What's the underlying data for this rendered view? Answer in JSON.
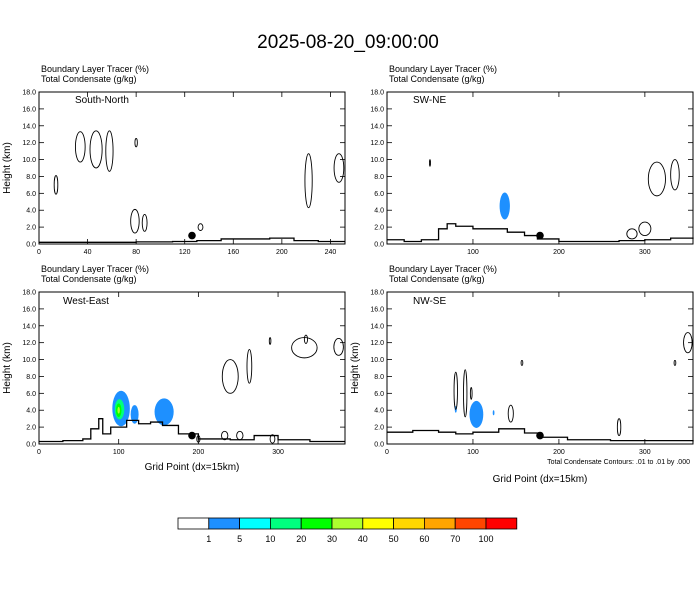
{
  "title": "2025-08-20_09:00:00",
  "chart_data": [
    {
      "type": "contour-cross-section",
      "panel": "South-North",
      "header": [
        "Boundary Layer Tracer   (%)",
        "Total Condensate   (g/kg)"
      ],
      "ylabel": "Height (km)",
      "ylim": [
        0,
        18
      ],
      "yticks": [
        "0.0",
        "2.0",
        "4.0",
        "6.0",
        "8.0",
        "10.0",
        "12.0",
        "14.0",
        "16.0",
        "18.0"
      ],
      "xlim": [
        0,
        252
      ],
      "xticks": [
        0,
        40,
        80,
        120,
        160,
        200,
        240
      ],
      "dot": {
        "x": 126,
        "y": 1.0
      },
      "terrain": [
        [
          0,
          0.2
        ],
        [
          40,
          0.2
        ],
        [
          80,
          0.25
        ],
        [
          110,
          0.3
        ],
        [
          130,
          0.4
        ],
        [
          150,
          0.6
        ],
        [
          170,
          0.6
        ],
        [
          190,
          0.7
        ],
        [
          210,
          0.4
        ],
        [
          230,
          0.3
        ],
        [
          252,
          0.3
        ]
      ],
      "cloud_outlines": [
        {
          "cx": 34,
          "cy": 11.5,
          "rx": 4,
          "ry": 1.8
        },
        {
          "cx": 47,
          "cy": 11.2,
          "rx": 5,
          "ry": 2.2
        },
        {
          "cx": 58,
          "cy": 11.0,
          "rx": 3,
          "ry": 2.4
        },
        {
          "cx": 14,
          "cy": 7.0,
          "rx": 1.5,
          "ry": 1.1
        },
        {
          "cx": 79,
          "cy": 2.7,
          "rx": 3.5,
          "ry": 1.4
        },
        {
          "cx": 87,
          "cy": 2.5,
          "rx": 2,
          "ry": 1.0
        },
        {
          "cx": 80,
          "cy": 12.0,
          "rx": 1,
          "ry": 0.5
        },
        {
          "cx": 222,
          "cy": 7.5,
          "rx": 3,
          "ry": 3.2
        },
        {
          "cx": 247,
          "cy": 9.0,
          "rx": 4,
          "ry": 1.7
        },
        {
          "cx": 133,
          "cy": 2.0,
          "rx": 2,
          "ry": 0.4
        }
      ],
      "filled": []
    },
    {
      "type": "contour-cross-section",
      "panel": "SW-NE",
      "header": [
        "Boundary Layer Tracer   (%)",
        "Total Condensate   (g/kg)"
      ],
      "ylabel": "",
      "ylim": [
        0,
        18
      ],
      "yticks": [
        "0.0",
        "2.0",
        "4.0",
        "6.0",
        "8.0",
        "10.0",
        "12.0",
        "14.0",
        "16.0",
        "18.0"
      ],
      "xlim": [
        0,
        356
      ],
      "xticks": [
        100,
        200,
        300
      ],
      "dot": {
        "x": 178,
        "y": 1.0
      },
      "terrain": [
        [
          0,
          0.5
        ],
        [
          20,
          0.3
        ],
        [
          40,
          0.5
        ],
        [
          60,
          1.8
        ],
        [
          70,
          2.4
        ],
        [
          80,
          2.1
        ],
        [
          100,
          1.8
        ],
        [
          120,
          1.8
        ],
        [
          140,
          1.4
        ],
        [
          160,
          1.0
        ],
        [
          175,
          0.6
        ],
        [
          200,
          0.3
        ],
        [
          240,
          0.3
        ],
        [
          270,
          0.4
        ],
        [
          300,
          0.5
        ],
        [
          330,
          0.7
        ],
        [
          356,
          0.6
        ]
      ],
      "cloud_outlines": [
        {
          "cx": 314,
          "cy": 7.7,
          "rx": 10,
          "ry": 2.0
        },
        {
          "cx": 335,
          "cy": 8.2,
          "rx": 5,
          "ry": 1.8
        },
        {
          "cx": 300,
          "cy": 1.8,
          "rx": 7,
          "ry": 0.8
        },
        {
          "cx": 285,
          "cy": 1.2,
          "rx": 6,
          "ry": 0.6
        },
        {
          "cx": 50,
          "cy": 9.6,
          "rx": 0.6,
          "ry": 0.4
        }
      ],
      "filled": [
        {
          "level": 1,
          "cx": 137,
          "cy": 4.5,
          "rx": 6,
          "ry": 1.6
        }
      ]
    },
    {
      "type": "contour-cross-section",
      "panel": "West-East",
      "header": [
        "Boundary Layer Tracer   (%)",
        "Total Condensate   (g/kg)"
      ],
      "ylabel": "Height (km)",
      "xlabel": "Grid Point (dx=15km)",
      "ylim": [
        0,
        18
      ],
      "yticks": [
        "0.0",
        "2.0",
        "4.0",
        "6.0",
        "8.0",
        "10.0",
        "12.0",
        "14.0",
        "16.0",
        "18.0"
      ],
      "xlim": [
        0,
        384
      ],
      "xticks": [
        0,
        100,
        200,
        300
      ],
      "dot": {
        "x": 192,
        "y": 1.0
      },
      "terrain": [
        [
          0,
          0.3
        ],
        [
          30,
          0.4
        ],
        [
          55,
          0.6
        ],
        [
          65,
          1.8
        ],
        [
          75,
          3.0
        ],
        [
          80,
          1.2
        ],
        [
          90,
          2.0
        ],
        [
          110,
          2.8
        ],
        [
          125,
          2.4
        ],
        [
          140,
          2.6
        ],
        [
          155,
          2.2
        ],
        [
          175,
          1.2
        ],
        [
          200,
          0.6
        ],
        [
          240,
          0.5
        ],
        [
          270,
          1.0
        ],
        [
          300,
          0.5
        ],
        [
          340,
          0.3
        ],
        [
          384,
          0.3
        ]
      ],
      "cloud_outlines": [
        {
          "cx": 240,
          "cy": 8.0,
          "rx": 10,
          "ry": 2.0
        },
        {
          "cx": 264,
          "cy": 9.2,
          "rx": 3,
          "ry": 2.0
        },
        {
          "cx": 333,
          "cy": 11.4,
          "rx": 16,
          "ry": 1.2
        },
        {
          "cx": 376,
          "cy": 11.5,
          "rx": 6,
          "ry": 1.0
        },
        {
          "cx": 290,
          "cy": 12.2,
          "rx": 1,
          "ry": 0.4
        },
        {
          "cx": 335,
          "cy": 12.4,
          "rx": 2,
          "ry": 0.5
        },
        {
          "cx": 233,
          "cy": 1.0,
          "rx": 4,
          "ry": 0.5
        },
        {
          "cx": 252,
          "cy": 1.0,
          "rx": 4,
          "ry": 0.5
        },
        {
          "cx": 293,
          "cy": 0.6,
          "rx": 3,
          "ry": 0.5
        },
        {
          "cx": 200,
          "cy": 0.6,
          "rx": 2,
          "ry": 0.4
        }
      ],
      "filled": [
        {
          "level": 1,
          "cx": 103,
          "cy": 4.2,
          "rx": 11,
          "ry": 2.1
        },
        {
          "level": 1,
          "cx": 120,
          "cy": 3.5,
          "rx": 5,
          "ry": 1.1
        },
        {
          "level": 1,
          "cx": 157,
          "cy": 3.8,
          "rx": 12,
          "ry": 1.6
        },
        {
          "level": 10,
          "cx": 101,
          "cy": 4.1,
          "rx": 6,
          "ry": 1.2
        },
        {
          "level": 20,
          "cx": 100,
          "cy": 4.0,
          "rx": 3.5,
          "ry": 0.8
        },
        {
          "level": 30,
          "cx": 100,
          "cy": 4.0,
          "rx": 1.5,
          "ry": 0.4
        }
      ]
    },
    {
      "type": "contour-cross-section",
      "panel": "NW-SE",
      "header": [
        "Boundary Layer Tracer   (%)",
        "Total Condensate   (g/kg)"
      ],
      "ylabel": "Height (km)",
      "xlabel": "Grid Point (dx=15km)",
      "ylim": [
        0,
        18
      ],
      "yticks": [
        "0.0",
        "2.0",
        "4.0",
        "6.0",
        "8.0",
        "10.0",
        "12.0",
        "14.0",
        "16.0",
        "18.0"
      ],
      "xlim": [
        0,
        356
      ],
      "xticks": [
        0,
        100,
        200,
        300
      ],
      "dot": {
        "x": 178,
        "y": 1.0
      },
      "terrain": [
        [
          0,
          1.4
        ],
        [
          30,
          1.6
        ],
        [
          60,
          1.4
        ],
        [
          80,
          1.2
        ],
        [
          100,
          1.4
        ],
        [
          130,
          1.8
        ],
        [
          160,
          1.3
        ],
        [
          180,
          0.8
        ],
        [
          210,
          0.5
        ],
        [
          260,
          0.4
        ],
        [
          300,
          0.4
        ],
        [
          356,
          0.3
        ]
      ],
      "cloud_outlines": [
        {
          "cx": 80,
          "cy": 6.3,
          "rx": 2,
          "ry": 2.2
        },
        {
          "cx": 91,
          "cy": 6.0,
          "rx": 2,
          "ry": 2.8
        },
        {
          "cx": 98,
          "cy": 6.0,
          "rx": 1,
          "ry": 0.7
        },
        {
          "cx": 144,
          "cy": 3.6,
          "rx": 3,
          "ry": 1.0
        },
        {
          "cx": 350,
          "cy": 12.0,
          "rx": 5,
          "ry": 1.2
        },
        {
          "cx": 270,
          "cy": 2.0,
          "rx": 2,
          "ry": 1.0
        },
        {
          "cx": 157,
          "cy": 9.6,
          "rx": 1,
          "ry": 0.3
        },
        {
          "cx": 335,
          "cy": 9.6,
          "rx": 1,
          "ry": 0.3
        }
      ],
      "filled": [
        {
          "level": 1,
          "cx": 104,
          "cy": 3.5,
          "rx": 8,
          "ry": 1.6
        },
        {
          "level": 1,
          "cx": 80,
          "cy": 4.1,
          "rx": 1.2,
          "ry": 0.4
        },
        {
          "level": 1,
          "cx": 124,
          "cy": 3.7,
          "rx": 1,
          "ry": 0.3
        }
      ]
    }
  ],
  "footnote": "Total Condensate Contours: .01 to .01 by .000",
  "colorbar": {
    "levels": [
      "1",
      "5",
      "10",
      "20",
      "30",
      "40",
      "50",
      "60",
      "70",
      "100"
    ],
    "colors": [
      "#ffffff",
      "#1e90ff",
      "#00ffff",
      "#00ff7f",
      "#00ff00",
      "#adff2f",
      "#ffff00",
      "#ffd700",
      "#ffa500",
      "#ff4500",
      "#ff0000"
    ]
  }
}
